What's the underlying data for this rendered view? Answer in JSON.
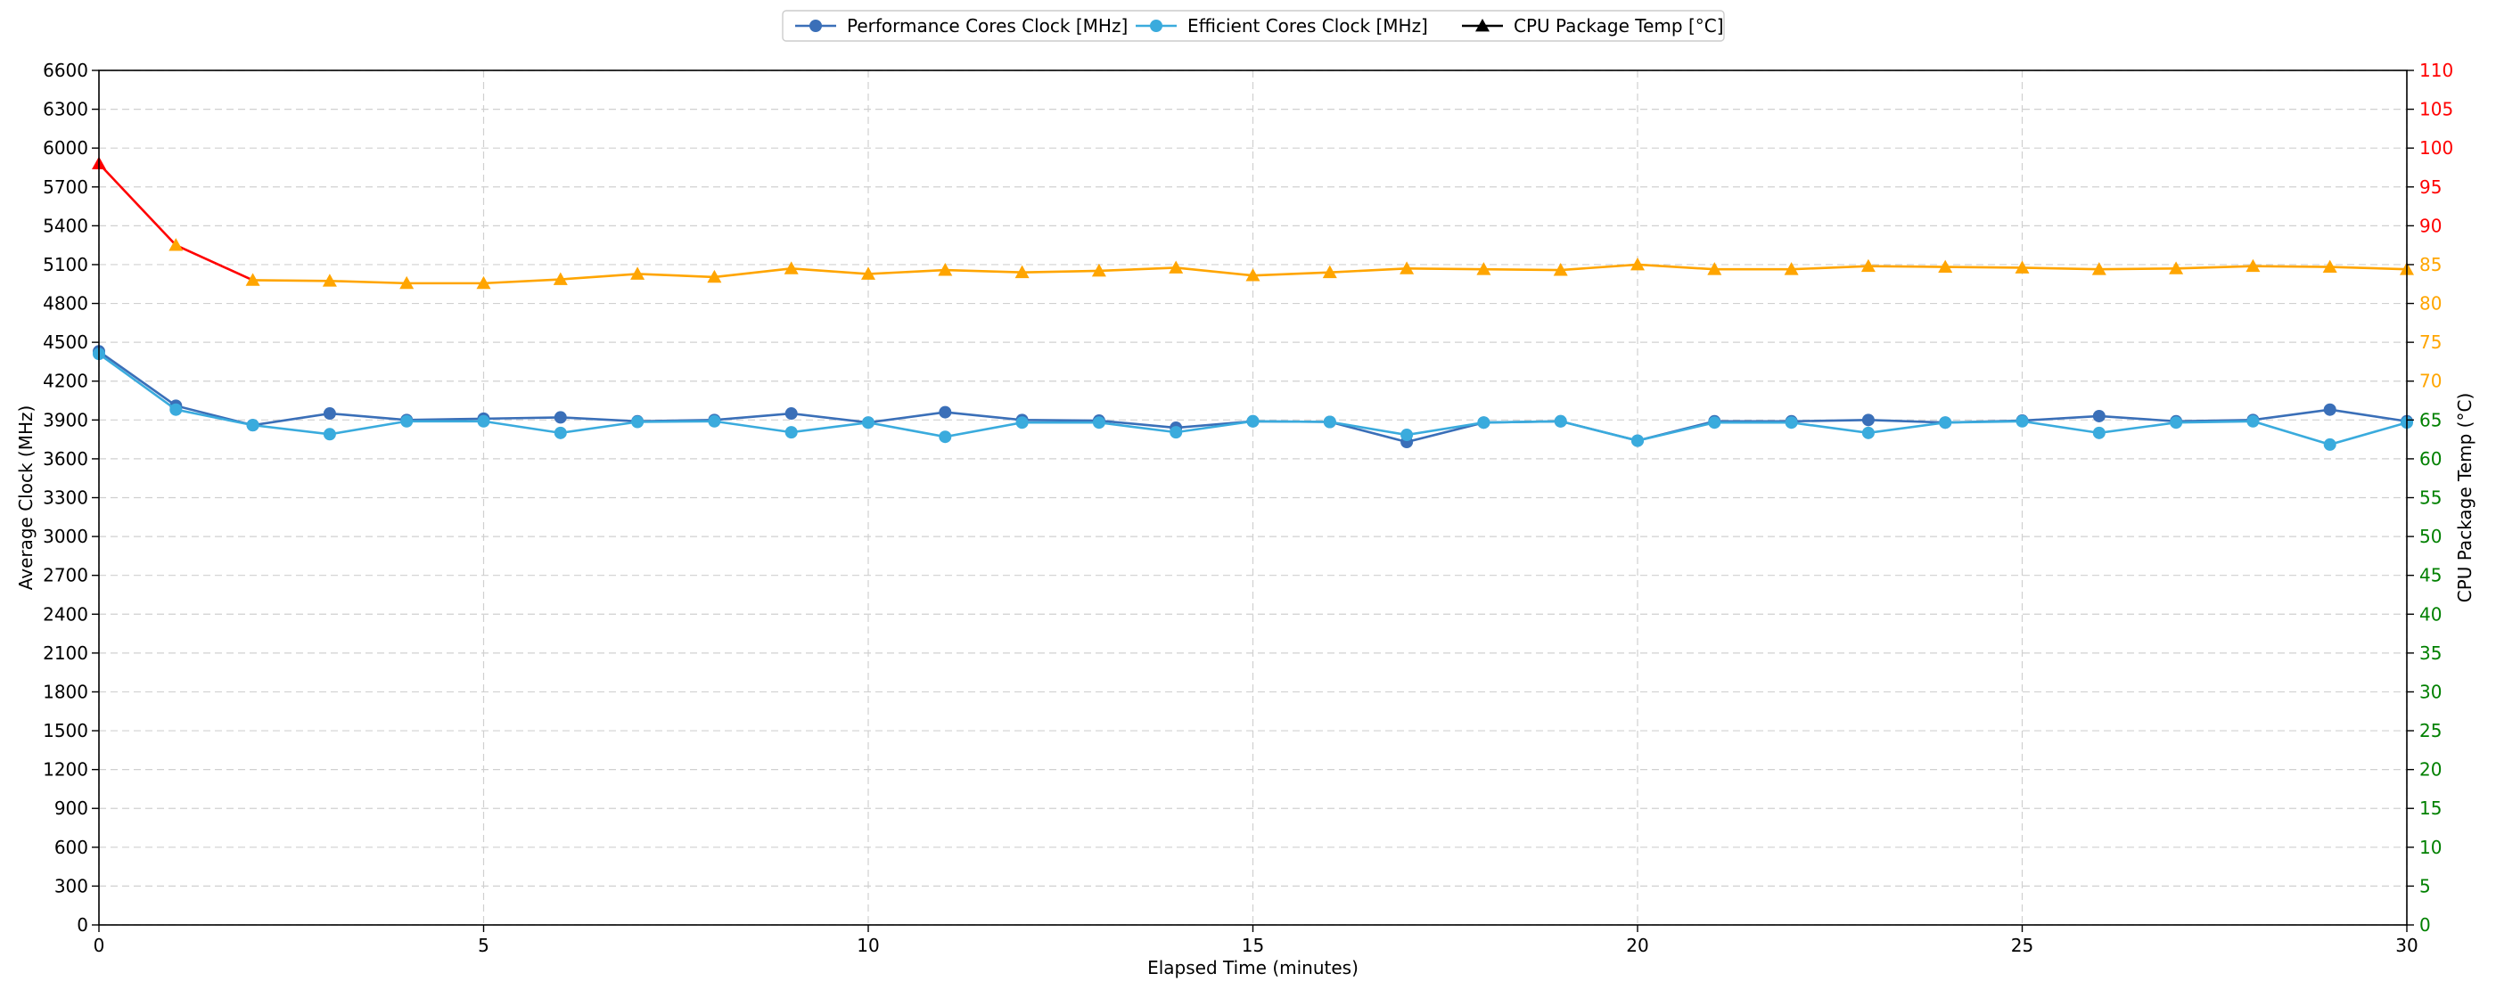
{
  "chart_data": {
    "type": "line",
    "xlabel": "Elapsed Time (minutes)",
    "ylabel": "Average Clock (MHz)",
    "y2label": "CPU Package Temp (°C)",
    "xlim": [
      0,
      30
    ],
    "ylim": [
      0,
      6600
    ],
    "y2lim": [
      0,
      110
    ],
    "x_ticks": [
      0,
      5,
      10,
      15,
      20,
      25,
      30
    ],
    "y_ticks": [
      0,
      300,
      600,
      900,
      1200,
      1500,
      1800,
      2100,
      2400,
      2700,
      3000,
      3300,
      3600,
      3900,
      4200,
      4500,
      4800,
      5100,
      5400,
      5700,
      6000,
      6300,
      6600
    ],
    "y2_ticks": [
      0,
      5,
      10,
      15,
      20,
      25,
      30,
      35,
      40,
      45,
      50,
      55,
      60,
      65,
      70,
      75,
      80,
      85,
      90,
      95,
      100,
      105,
      110
    ],
    "y2_tick_colors": {
      "green_max": 65,
      "orange_max": 85,
      "green": "#008000",
      "orange": "#ffa500",
      "red": "#ff0000"
    },
    "grid": true,
    "legend_position": "top-center",
    "x": [
      0,
      1,
      2,
      3,
      4,
      5,
      6,
      7,
      8,
      9,
      10,
      11,
      12,
      13,
      14,
      15,
      16,
      17,
      18,
      19,
      20,
      21,
      22,
      23,
      24,
      25,
      26,
      27,
      28,
      29,
      30
    ],
    "series": [
      {
        "name": "Performance Cores Clock [MHz]",
        "axis": "left",
        "marker": "circle",
        "color": "#3a6fb8",
        "values": [
          4430,
          4010,
          3860,
          3950,
          3900,
          3910,
          3920,
          3890,
          3900,
          3950,
          3880,
          3960,
          3900,
          3895,
          3840,
          3890,
          3885,
          3730,
          3880,
          3890,
          3740,
          3890,
          3890,
          3900,
          3880,
          3895,
          3930,
          3890,
          3900,
          3980,
          3890
        ]
      },
      {
        "name": "Efficient Cores Clock [MHz]",
        "axis": "left",
        "marker": "circle",
        "color": "#3aabdd",
        "values": [
          4410,
          3980,
          3860,
          3790,
          3890,
          3890,
          3800,
          3885,
          3890,
          3805,
          3880,
          3770,
          3880,
          3880,
          3805,
          3890,
          3885,
          3785,
          3880,
          3890,
          3740,
          3880,
          3880,
          3800,
          3880,
          3890,
          3800,
          3880,
          3890,
          3710,
          3880
        ]
      },
      {
        "name": "CPU Package Temp [°C]",
        "axis": "right",
        "marker": "triangle",
        "color": "#000000",
        "segment_colors": {
          "high": "#ff0000",
          "mid": "#ffa500",
          "threshold": 85
        },
        "values": [
          98,
          87.5,
          83,
          82.9,
          82.6,
          82.6,
          83.1,
          83.8,
          83.4,
          84.5,
          83.8,
          84.3,
          84,
          84.2,
          84.6,
          83.6,
          84,
          84.5,
          84.4,
          84.3,
          85,
          84.4,
          84.4,
          84.8,
          84.7,
          84.6,
          84.4,
          84.5,
          84.8,
          84.7,
          84.4
        ]
      }
    ]
  }
}
